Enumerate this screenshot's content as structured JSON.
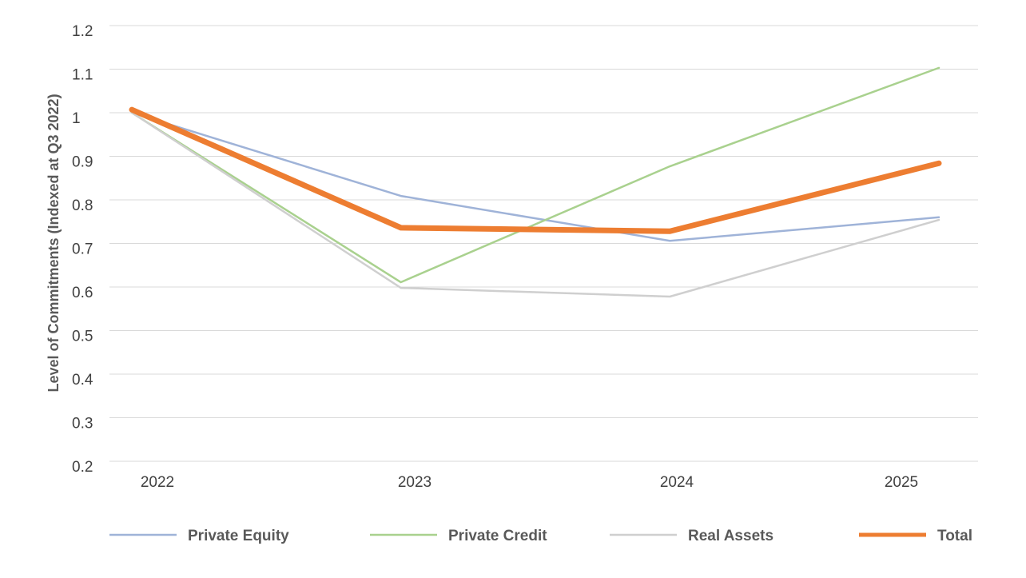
{
  "chart_data": {
    "type": "line",
    "y_label": "Level of Commitments (Indexed at Q3 2022)",
    "categories": [
      "2022",
      "2023",
      "2024",
      "2025"
    ],
    "series": [
      {
        "name": "Private Equity",
        "color": "#9fb3d8",
        "width": 2.5,
        "values": [
          1.0,
          0.809,
          0.706,
          0.76
        ]
      },
      {
        "name": "Private Credit",
        "color": "#a9d18e",
        "width": 2.5,
        "values": [
          1.0,
          0.611,
          0.877,
          1.103
        ]
      },
      {
        "name": "Real Assets",
        "color": "#cfcfcf",
        "width": 2.5,
        "values": [
          1.0,
          0.598,
          0.578,
          0.754
        ]
      },
      {
        "name": "Total",
        "color": "#ed7d31",
        "width": 7,
        "values": [
          1.007,
          0.736,
          0.728,
          0.884
        ]
      }
    ],
    "ylim": [
      0.2,
      1.2
    ],
    "yticks": [
      0.2,
      0.3,
      0.4,
      0.5,
      0.6,
      0.7,
      0.8,
      0.9,
      1,
      1.1,
      1.2
    ],
    "grid": true,
    "legend": "bottom"
  }
}
